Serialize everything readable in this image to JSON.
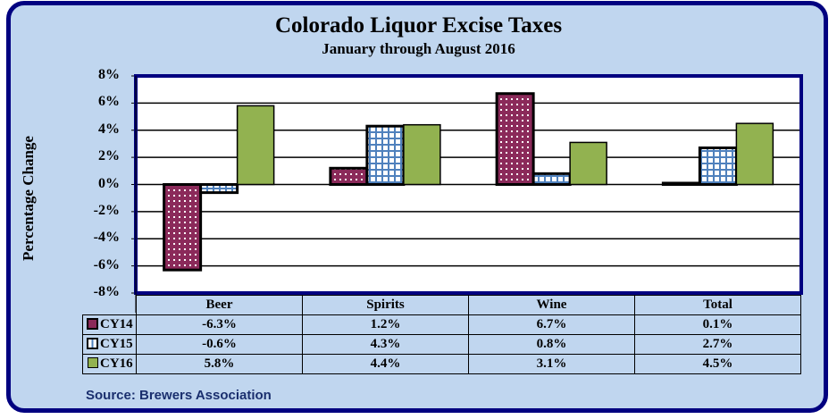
{
  "chart_data": {
    "type": "bar",
    "title": "Colorado Liquor Excise Taxes",
    "subtitle": "January through  August 2016",
    "xlabel": "",
    "ylabel": "Percentage Change",
    "ylim": [
      -8,
      8
    ],
    "yticks": [
      "8%",
      "6%",
      "4%",
      "2%",
      "0%",
      "-2%",
      "-4%",
      "-6%",
      "-8%"
    ],
    "ytick_values": [
      8,
      6,
      4,
      2,
      0,
      -2,
      -4,
      -6,
      -8
    ],
    "grid": true,
    "legend": "data-table",
    "categories": [
      "Beer",
      "Spirits",
      "Wine",
      "Total"
    ],
    "series": [
      {
        "name": "CY14",
        "values": [
          -6.3,
          1.2,
          6.7,
          0.1
        ],
        "labels": [
          "-6.3%",
          "1.2%",
          "6.7%",
          "0.1%"
        ],
        "color": "#8b2a5a",
        "pattern": "dots"
      },
      {
        "name": "CY15",
        "values": [
          -0.6,
          4.3,
          0.8,
          2.7
        ],
        "labels": [
          "-0.6%",
          "4.3%",
          "0.8%",
          "2.7%"
        ],
        "color": "#4f81bd",
        "pattern": "grid"
      },
      {
        "name": "CY16",
        "values": [
          5.8,
          4.4,
          3.1,
          4.5
        ],
        "labels": [
          "5.8%",
          "4.4%",
          "3.1%",
          "4.5%"
        ],
        "color": "#92b250",
        "pattern": "solid"
      }
    ]
  },
  "source": "Source: Brewers Association",
  "colors": {
    "frame": "#000080",
    "background": "#c0d6ef",
    "plot": "#ffffff"
  }
}
